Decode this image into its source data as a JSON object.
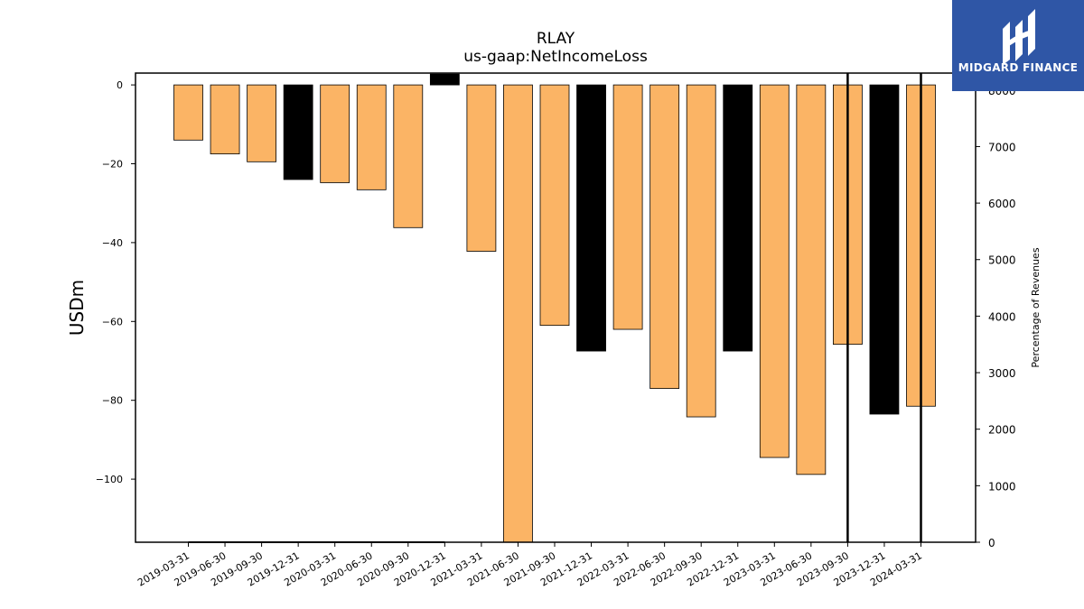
{
  "chart_data": {
    "type": "bar",
    "title": "RLAY",
    "subtitle": "us-gaap:NetIncomeLoss",
    "ylabel": "USDm",
    "y2label": "Percentage of Revenues",
    "ylim": [
      -116,
      3
    ],
    "y2lim": [
      0,
      8300
    ],
    "yticks": [
      0,
      -20,
      -40,
      -60,
      -80,
      -100
    ],
    "y2ticks": [
      0,
      1000,
      2000,
      3000,
      4000,
      5000,
      6000,
      7000,
      8000
    ],
    "categories": [
      "2019-03-31",
      "2019-06-30",
      "2019-09-30",
      "2019-12-31",
      "2020-03-31",
      "2020-06-30",
      "2020-09-30",
      "2020-12-31",
      "2021-03-31",
      "2021-06-30",
      "2021-09-30",
      "2021-12-31",
      "2022-03-31",
      "2022-06-30",
      "2022-09-30",
      "2022-12-31",
      "2023-03-31",
      "2023-06-30",
      "2023-09-30",
      "2023-12-31",
      "2024-03-31"
    ],
    "values": [
      -14,
      -17.5,
      -19.5,
      -24,
      -24.8,
      -26.6,
      -36.2,
      0,
      -42.2,
      -116,
      -61,
      -67.5,
      -62,
      -77,
      -84.2,
      -67.5,
      -94.5,
      -98.8,
      -65.8,
      -83.5,
      -81.5
    ],
    "bar_colors": [
      "#fbb465",
      "#fbb465",
      "#fbb465",
      "#000000",
      "#fbb465",
      "#fbb465",
      "#fbb465",
      "#000000",
      "#fbb465",
      "#fbb465",
      "#fbb465",
      "#000000",
      "#fbb465",
      "#fbb465",
      "#fbb465",
      "#000000",
      "#fbb465",
      "#fbb465",
      "#fbb465",
      "#000000",
      "#fbb465"
    ],
    "percentage_of_revenues": {
      "x": [
        "2019-03-31",
        "2019-06-30",
        "2019-09-30",
        "2019-12-31",
        "2020-03-31",
        "2020-06-30",
        "2020-09-30",
        "2020-12-31"
      ],
      "values": [
        0,
        0,
        0,
        0,
        0,
        0,
        0,
        0
      ]
    },
    "vertical_markers": [
      "2023-09-30",
      "2024-03-31"
    ],
    "colors": {
      "bar_orange": "#fbb465",
      "bar_black": "#000000"
    }
  },
  "branding": {
    "name": "MIDGARD FINANCE",
    "icon": "midgard-logo-icon",
    "background": "#2f56a6"
  }
}
